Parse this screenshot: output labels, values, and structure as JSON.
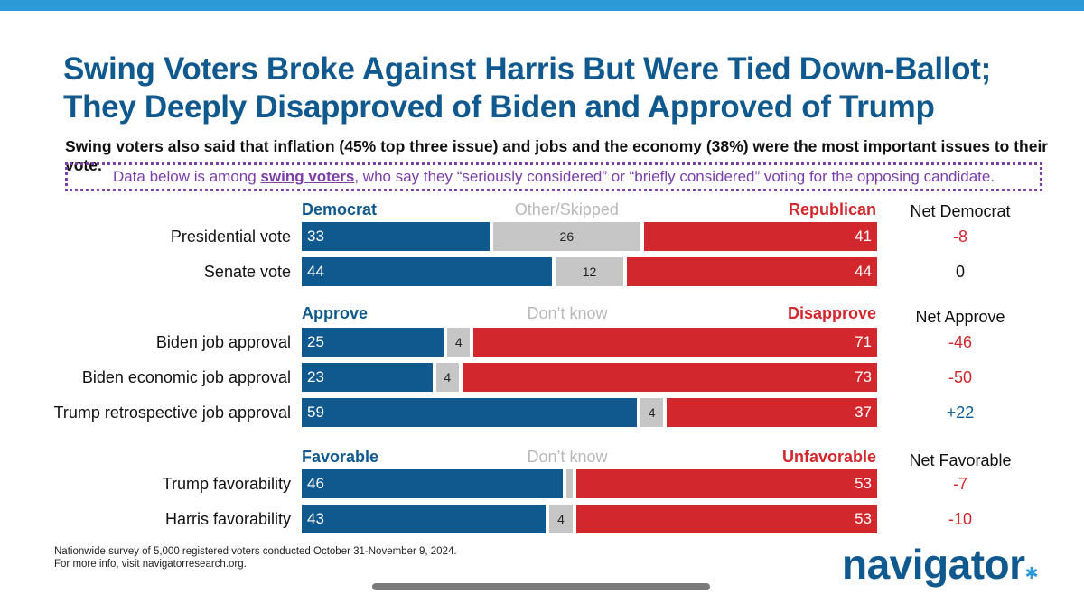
{
  "title_line1": "Swing Voters Broke Against Harris But Were Tied Down-Ballot;",
  "title_line2": "They Deeply Disapproved of Biden and Approved of Trump",
  "subtitle": "Swing voters also said that inflation (45% top three issue) and jobs and the economy (38%) were the most important issues to their vote.",
  "note": {
    "pre": "Data below is among ",
    "link": "swing voters",
    "post": ", who say they “seriously considered” or “briefly considered” voting for the opposing candidate."
  },
  "colors": {
    "left": "#10598e",
    "mid": "#c6c6c6",
    "right": "#d3272e",
    "net_positive": "#10598e",
    "net_negative": "#d3272e",
    "net_zero": "#111111"
  },
  "chart_data": {
    "type": "bar",
    "stacked": true,
    "orientation": "horizontal",
    "xlim": [
      0,
      100
    ],
    "groups": [
      {
        "headers": {
          "left": "Democrat",
          "mid": "Other/Skipped",
          "right": "Republican",
          "net": "Net Democrat"
        },
        "rows": [
          {
            "label": "Presidential vote",
            "left": 33,
            "mid": 26,
            "right": 41,
            "net": "-8"
          },
          {
            "label": "Senate vote",
            "left": 44,
            "mid": 12,
            "right": 44,
            "net": "0"
          }
        ]
      },
      {
        "headers": {
          "left": "Approve",
          "mid": "Don’t know",
          "right": "Disapprove",
          "net": "Net Approve"
        },
        "rows": [
          {
            "label": "Biden job approval",
            "left": 25,
            "mid": 4,
            "right": 71,
            "net": "-46"
          },
          {
            "label": "Biden economic job approval",
            "left": 23,
            "mid": 4,
            "right": 73,
            "net": "-50"
          },
          {
            "label": "Trump retrospective job approval",
            "left": 59,
            "mid": 4,
            "right": 37,
            "net": "+22"
          }
        ]
      },
      {
        "headers": {
          "left": "Favorable",
          "mid": "Don’t know",
          "right": "Unfavorable",
          "net": "Net Favorable"
        },
        "rows": [
          {
            "label": "Trump favorability",
            "left": 46,
            "mid": 1,
            "right": 53,
            "net": "-7",
            "mid_label": ""
          },
          {
            "label": "Harris favorability",
            "left": 43,
            "mid": 4,
            "right": 53,
            "net": "-10"
          }
        ]
      }
    ]
  },
  "footnote_line1": "Nationwide survey of 5,000 registered voters conducted October 31-November 9, 2024.",
  "footnote_line2": "For more info, visit navigatorresearch.org.",
  "logo_text": "navigator",
  "logo_dot": "✱"
}
